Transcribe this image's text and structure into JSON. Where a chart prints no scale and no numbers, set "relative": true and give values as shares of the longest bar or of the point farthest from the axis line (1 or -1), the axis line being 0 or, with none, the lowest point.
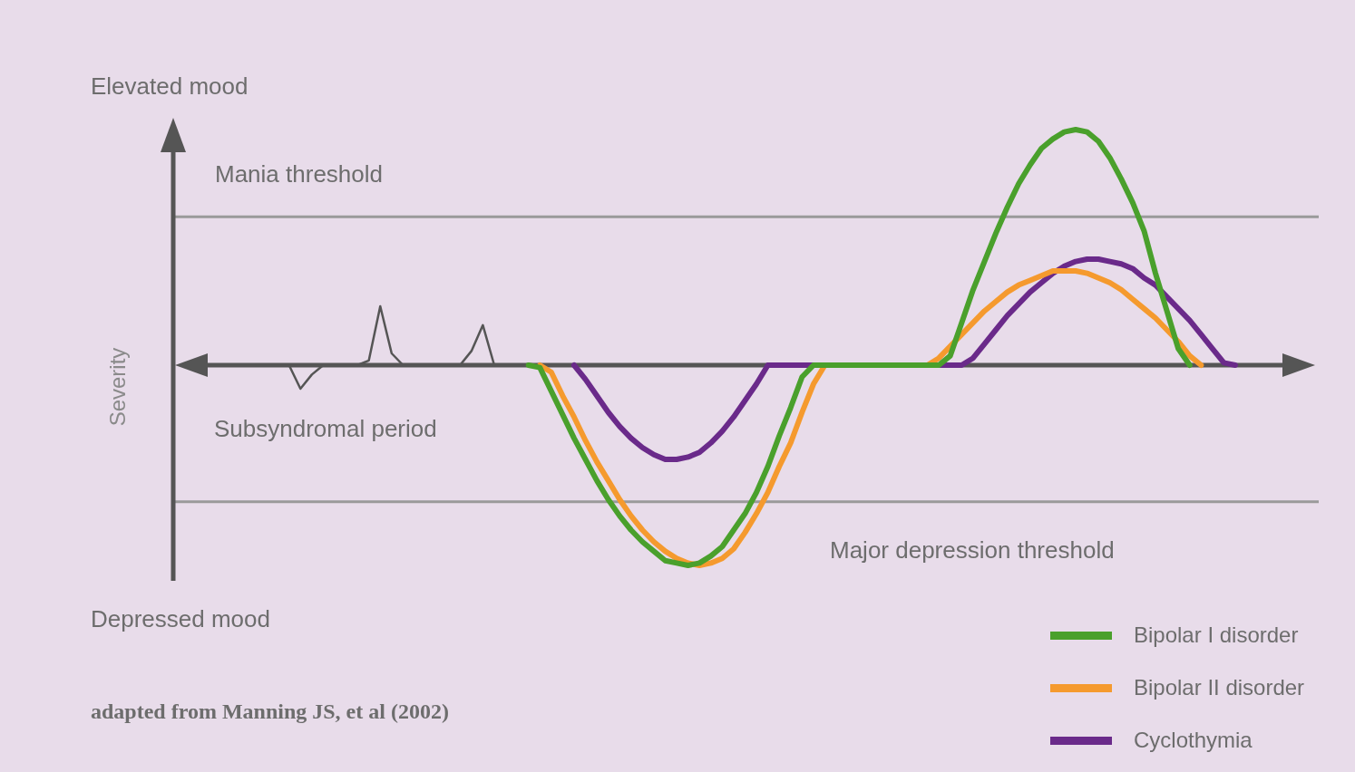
{
  "chart_data": {
    "type": "line",
    "relative": true,
    "ylabel": "Severity",
    "marker": "none",
    "line_style": "solid",
    "legend": "bottom right",
    "tick_labels": false,
    "categories": [
      null,
      null,
      null,
      null,
      null,
      null,
      null,
      null,
      null,
      null,
      null,
      null,
      null,
      null,
      null,
      null,
      null,
      null,
      null,
      null,
      null,
      null,
      null,
      null,
      null,
      null,
      null,
      null,
      null,
      null,
      null,
      null,
      null,
      null,
      null,
      null,
      null,
      null,
      null,
      null,
      null,
      null,
      null,
      null,
      null,
      null,
      null,
      null,
      null,
      null,
      null,
      null,
      null,
      null,
      null,
      null,
      null,
      null,
      null,
      null,
      null,
      null,
      null,
      null,
      null,
      null,
      null,
      null,
      null,
      null,
      null,
      null,
      null,
      null,
      null,
      null,
      null,
      null,
      null,
      null,
      null,
      null,
      null,
      null,
      null,
      null,
      null,
      null,
      null,
      null,
      null,
      null,
      null,
      null,
      null,
      null,
      null,
      null,
      null,
      null,
      null
    ],
    "annotations": [
      "Elevated mood",
      "Depressed mood",
      "Subsyndromal period",
      "adapted from Manning JS, et al (2002)"
    ],
    "ref_lines": [
      {
        "axis": "y",
        "value": 0.63,
        "label": "Mania threshold",
        "color": "#9a9a9a"
      },
      {
        "axis": "y",
        "value": -0.58,
        "label": "Major depression threshold",
        "color": "#9a9a9a"
      }
    ],
    "series": [
      {
        "color": "#555555",
        "values": [
          null,
          null,
          null,
          null,
          null,
          null,
          null,
          0,
          0,
          0,
          0,
          -0.1,
          -0.04,
          0,
          0,
          0,
          0,
          0.02,
          0.25,
          0.05,
          0,
          0,
          0,
          0,
          0,
          0,
          0.06,
          0.17,
          0,
          null,
          null,
          null,
          null,
          null,
          null,
          null,
          null,
          null,
          null,
          null,
          null,
          null,
          null,
          null,
          null,
          null,
          null,
          null,
          null,
          null,
          null,
          null,
          null,
          null,
          null,
          null,
          null,
          null,
          null,
          null,
          null,
          null,
          null,
          null,
          null,
          null,
          null,
          null,
          null,
          null,
          null,
          null,
          null,
          null,
          null,
          null,
          null,
          null,
          null,
          null,
          null,
          null,
          null,
          null,
          null,
          null,
          null,
          null,
          null,
          null,
          null,
          null,
          null,
          null,
          null,
          null,
          null,
          null,
          null,
          null,
          null
        ]
      },
      {
        "name": "Bipolar I disorder",
        "color": "#4aa02c",
        "values": [
          null,
          null,
          null,
          null,
          null,
          null,
          null,
          null,
          null,
          null,
          null,
          null,
          null,
          null,
          null,
          null,
          null,
          null,
          null,
          null,
          null,
          null,
          null,
          null,
          null,
          null,
          null,
          null,
          null,
          null,
          null,
          0,
          -0.01,
          -0.11,
          -0.21,
          -0.31,
          -0.4,
          -0.49,
          -0.57,
          -0.64,
          -0.7,
          -0.75,
          -0.79,
          -0.83,
          -0.84,
          -0.85,
          -0.84,
          -0.81,
          -0.77,
          -0.7,
          -0.63,
          -0.54,
          -0.43,
          -0.3,
          -0.18,
          -0.05,
          0,
          0,
          0,
          0,
          0,
          0,
          0,
          0,
          0,
          0,
          0,
          0,
          0.04,
          0.18,
          0.32,
          0.44,
          0.56,
          0.67,
          0.77,
          0.85,
          0.92,
          0.96,
          0.99,
          1,
          0.99,
          0.95,
          0.88,
          0.79,
          0.69,
          0.57,
          0.39,
          0.23,
          0.07,
          0,
          null,
          null,
          null,
          null,
          null,
          null,
          null,
          null,
          null,
          null,
          null
        ]
      },
      {
        "name": "Bipolar II disorder",
        "color": "#f59a2e",
        "values": [
          null,
          null,
          null,
          null,
          null,
          null,
          null,
          null,
          null,
          null,
          null,
          null,
          null,
          null,
          null,
          null,
          null,
          null,
          null,
          null,
          null,
          null,
          null,
          null,
          null,
          null,
          null,
          null,
          null,
          null,
          null,
          null,
          0,
          -0.03,
          -0.13,
          -0.22,
          -0.32,
          -0.41,
          -0.49,
          -0.57,
          -0.64,
          -0.7,
          -0.75,
          -0.79,
          -0.82,
          -0.84,
          -0.85,
          -0.84,
          -0.82,
          -0.78,
          -0.71,
          -0.63,
          -0.54,
          -0.43,
          -0.33,
          -0.2,
          -0.08,
          0,
          0,
          0,
          0,
          0,
          0,
          0,
          0,
          0,
          0,
          0.03,
          0.08,
          0.13,
          0.18,
          0.23,
          0.27,
          0.31,
          0.34,
          0.36,
          0.38,
          0.4,
          0.4,
          0.4,
          0.39,
          0.37,
          0.35,
          0.32,
          0.28,
          0.24,
          0.2,
          0.15,
          0.1,
          0.04,
          0,
          null,
          null,
          null,
          null,
          null,
          null,
          null,
          null,
          null,
          null
        ]
      },
      {
        "name": "Cyclothymia",
        "color": "#6a2a8a",
        "values": [
          null,
          null,
          null,
          null,
          null,
          null,
          null,
          null,
          null,
          null,
          null,
          null,
          null,
          null,
          null,
          null,
          null,
          null,
          null,
          null,
          null,
          null,
          null,
          null,
          null,
          null,
          null,
          null,
          null,
          null,
          null,
          null,
          null,
          null,
          null,
          0,
          -0.06,
          -0.13,
          -0.2,
          -0.26,
          -0.31,
          -0.35,
          -0.38,
          -0.4,
          -0.4,
          -0.39,
          -0.37,
          -0.33,
          -0.28,
          -0.22,
          -0.15,
          -0.08,
          0,
          0,
          0,
          0,
          0,
          0,
          0,
          0,
          0,
          0,
          0,
          0,
          0,
          0,
          0,
          0,
          0,
          0,
          0.03,
          0.09,
          0.15,
          0.21,
          0.26,
          0.31,
          0.35,
          0.39,
          0.42,
          0.44,
          0.45,
          0.45,
          0.44,
          0.43,
          0.41,
          0.37,
          0.34,
          0.29,
          0.24,
          0.19,
          0.13,
          0.07,
          0.01,
          0,
          null,
          null,
          null,
          null,
          null,
          null,
          null
        ]
      }
    ]
  }
}
